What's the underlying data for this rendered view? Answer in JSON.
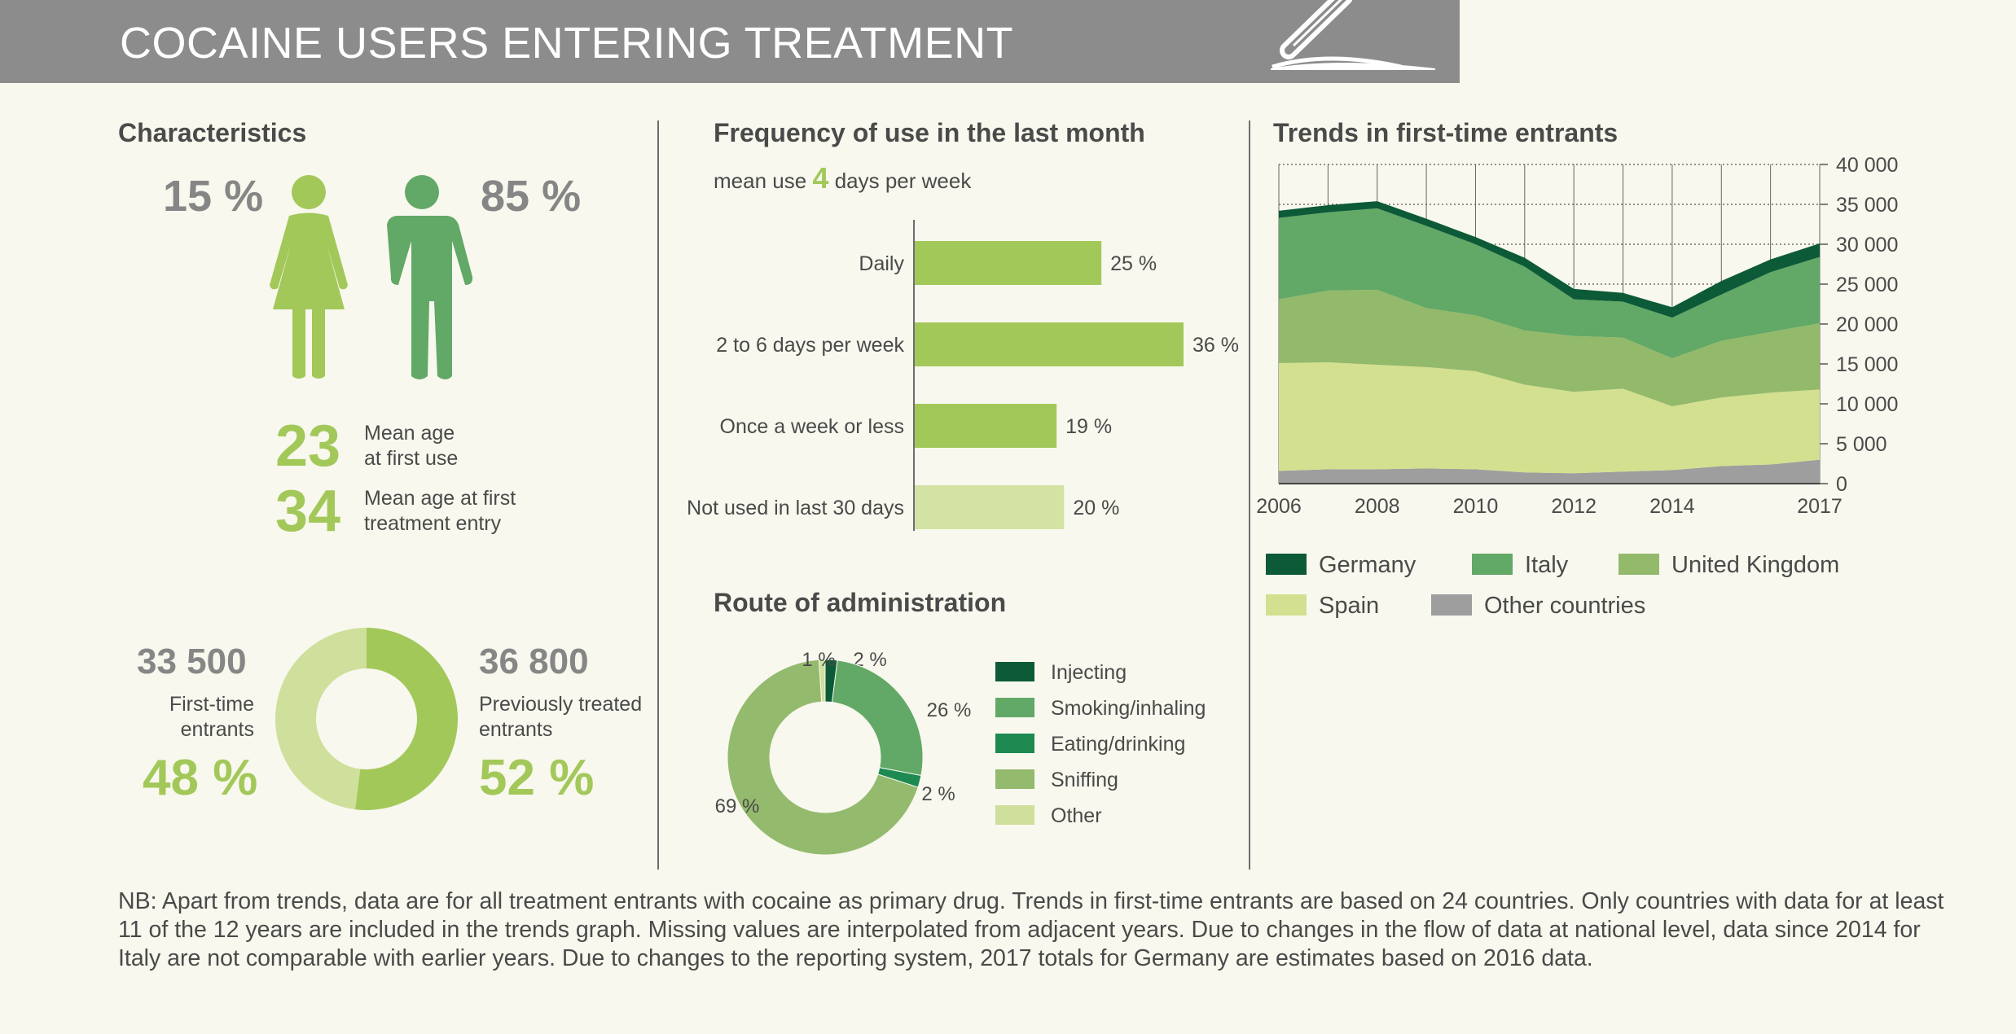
{
  "header": {
    "title": "COCAINE USERS ENTERING TREATMENT",
    "icon": "pen-icon"
  },
  "characteristics": {
    "title": "Characteristics",
    "female_pct": "15 %",
    "male_pct": "85 %",
    "mean_age_first_use": "23",
    "mean_age_first_use_label_1": "Mean age",
    "mean_age_first_use_label_2": "at first use",
    "mean_age_treatment": "34",
    "mean_age_treatment_label_1": "Mean age at first",
    "mean_age_treatment_label_2": "treatment entry",
    "first_time_count": "33 500",
    "first_time_label_1": "First-time",
    "first_time_label_2": "entrants",
    "first_time_pct": "48 %",
    "prev_count": "36 800",
    "prev_label_1": "Previously treated",
    "prev_label_2": "entrants",
    "prev_pct": "52 %",
    "colors": {
      "female": "#a3c85a",
      "male": "#62a866",
      "first_time": "#cfdf9c",
      "previous": "#a3c85a"
    }
  },
  "frequency": {
    "title": "Frequency of use in the last month",
    "subtitle_pre": "mean use",
    "subtitle_num": "4",
    "subtitle_post": "days per week"
  },
  "route": {
    "title": "Route of administration"
  },
  "trends": {
    "title": "Trends in first-time entrants"
  },
  "note": "NB: Apart from trends, data are for all treatment entrants with cocaine as primary drug. Trends in first-time entrants are based on 24 countries. Only countries with data for at least 11 of the 12 years are included in the trends graph. Missing values are interpolated from adjacent years. Due to changes in the flow of data at national level, data since 2014 for Italy are not comparable with earlier years. Due to changes to the reporting system, 2017 totals for Germany are estimates based on 2016 data.",
  "chart_data": [
    {
      "type": "pie",
      "id": "gender-donut",
      "categories": [
        "First-time entrants",
        "Previously treated entrants"
      ],
      "values": [
        48,
        52
      ],
      "colors": [
        "#cfdf9c",
        "#a3c85a"
      ]
    },
    {
      "type": "bar",
      "id": "frequency",
      "categories": [
        "Daily",
        "2 to 6 days per week",
        "Once a week or less",
        "Not used in last 30 days"
      ],
      "values": [
        25,
        36,
        19,
        20
      ],
      "labels": [
        "25 %",
        "36 %",
        "19 %",
        "20 %"
      ],
      "colors": [
        "#a3c85a",
        "#a3c85a",
        "#a3c85a",
        "#d3e3a3"
      ],
      "xlim": [
        0,
        36
      ]
    },
    {
      "type": "pie",
      "id": "route",
      "categories": [
        "Injecting",
        "Smoking/inhaling",
        "Eating/drinking",
        "Sniffing",
        "Other"
      ],
      "values": [
        2,
        26,
        2,
        69,
        1
      ],
      "labels": [
        "2 %",
        "26 %",
        "2 %",
        "69 %",
        "1 %"
      ],
      "colors": [
        "#0c5a37",
        "#62a866",
        "#1e8a52",
        "#94ba6e",
        "#cfdf9c"
      ],
      "legend": "right"
    },
    {
      "type": "area",
      "id": "trends",
      "stacked": true,
      "x": [
        2006,
        2007,
        2008,
        2009,
        2010,
        2011,
        2012,
        2013,
        2014,
        2015,
        2016,
        2017
      ],
      "xticks": [
        "2006",
        "2008",
        "2010",
        "2012",
        "2014",
        "2017"
      ],
      "yticks": [
        "0",
        "5 000",
        "10 000",
        "15 000",
        "20 000",
        "25 000",
        "30 000",
        "35 000",
        "40 000"
      ],
      "ylim": [
        0,
        40000
      ],
      "grid": true,
      "legend": "bottom",
      "series": [
        {
          "name": "Other countries",
          "color": "#9e9e9e",
          "values": [
            1600,
            1800,
            1800,
            1900,
            1800,
            1400,
            1300,
            1500,
            1700,
            2200,
            2400,
            3000
          ]
        },
        {
          "name": "Spain",
          "color": "#d3e08f",
          "values": [
            13500,
            13400,
            13100,
            12700,
            12300,
            11000,
            10200,
            10400,
            8000,
            8600,
            9000,
            8800
          ]
        },
        {
          "name": "United Kingdom",
          "color": "#93b96b",
          "values": [
            8000,
            9000,
            9400,
            7400,
            7000,
            6800,
            7000,
            6400,
            6000,
            7100,
            7600,
            8300
          ]
        },
        {
          "name": "Italy",
          "color": "#62a866",
          "values": [
            10200,
            9800,
            10200,
            10300,
            8900,
            8000,
            4600,
            4500,
            5100,
            5800,
            7500,
            8300
          ]
        },
        {
          "name": "Germany",
          "color": "#0c5a37",
          "values": [
            900,
            900,
            900,
            900,
            900,
            1100,
            1300,
            1100,
            1300,
            1700,
            1600,
            1700
          ]
        }
      ],
      "legend_order": [
        "Germany",
        "Italy",
        "United Kingdom",
        "Spain",
        "Other countries"
      ]
    }
  ]
}
